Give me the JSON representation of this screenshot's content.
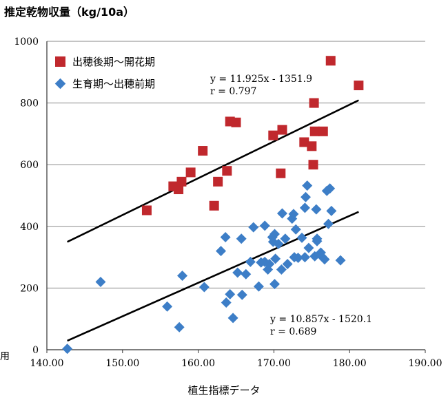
{
  "chart_data": {
    "type": "scatter",
    "ylabel": "推定乾物収量（kg/10a）",
    "xlabel": "植生指標データ",
    "stray_text": "用",
    "xlim": [
      140,
      190
    ],
    "ylim": [
      0,
      1000
    ],
    "x_ticks": [
      "140.00",
      "150.00",
      "160.00",
      "170.00",
      "180.00",
      "190.00"
    ],
    "y_ticks": [
      "0",
      "200",
      "400",
      "600",
      "800",
      "1000"
    ],
    "grid": "horizontal",
    "legend_position": "top-left",
    "series": [
      {
        "name": "出穂後期～開花期",
        "marker": "square",
        "color": "#c0282d",
        "points": [
          [
            153.2,
            452
          ],
          [
            156.7,
            530
          ],
          [
            157.4,
            520
          ],
          [
            157.8,
            545
          ],
          [
            159.0,
            575
          ],
          [
            160.6,
            645
          ],
          [
            162.1,
            467
          ],
          [
            162.6,
            545
          ],
          [
            163.8,
            580
          ],
          [
            164.2,
            740
          ],
          [
            165.0,
            737
          ],
          [
            169.9,
            695
          ],
          [
            170.9,
            572
          ],
          [
            171.1,
            713
          ],
          [
            174.0,
            673
          ],
          [
            175.0,
            660
          ],
          [
            175.2,
            600
          ],
          [
            175.3,
            800
          ],
          [
            175.4,
            708
          ],
          [
            176.5,
            708
          ],
          [
            177.5,
            937
          ],
          [
            181.2,
            857
          ]
        ]
      },
      {
        "name": "生育期～出穂前期",
        "marker": "diamond",
        "color": "#3d7ec7",
        "points": [
          [
            142.7,
            3
          ],
          [
            147.1,
            220
          ],
          [
            155.9,
            140
          ],
          [
            157.5,
            73
          ],
          [
            157.9,
            240
          ],
          [
            160.8,
            203
          ],
          [
            163.0,
            320
          ],
          [
            163.6,
            365
          ],
          [
            163.7,
            153
          ],
          [
            164.2,
            180
          ],
          [
            164.6,
            103
          ],
          [
            165.2,
            250
          ],
          [
            165.7,
            360
          ],
          [
            165.8,
            178
          ],
          [
            166.3,
            245
          ],
          [
            166.9,
            285
          ],
          [
            167.3,
            397
          ],
          [
            168.0,
            205
          ],
          [
            168.3,
            283
          ],
          [
            168.8,
            402
          ],
          [
            168.8,
            285
          ],
          [
            169.2,
            260
          ],
          [
            169.4,
            278
          ],
          [
            169.8,
            365
          ],
          [
            169.9,
            350
          ],
          [
            170.1,
            375
          ],
          [
            170.1,
            213
          ],
          [
            170.2,
            295
          ],
          [
            170.6,
            343
          ],
          [
            171.0,
            260
          ],
          [
            171.1,
            442
          ],
          [
            171.5,
            360
          ],
          [
            171.8,
            278
          ],
          [
            172.4,
            425
          ],
          [
            172.6,
            440
          ],
          [
            172.7,
            300
          ],
          [
            172.9,
            390
          ],
          [
            173.2,
            298
          ],
          [
            173.7,
            363
          ],
          [
            174.1,
            460
          ],
          [
            174.1,
            300
          ],
          [
            174.2,
            495
          ],
          [
            174.4,
            532
          ],
          [
            174.6,
            330
          ],
          [
            175.4,
            303
          ],
          [
            175.6,
            455
          ],
          [
            175.7,
            360
          ],
          [
            175.7,
            352
          ],
          [
            176.2,
            315
          ],
          [
            176.3,
            303
          ],
          [
            176.7,
            293
          ],
          [
            177.0,
            515
          ],
          [
            177.2,
            408
          ],
          [
            177.4,
            523
          ],
          [
            177.6,
            450
          ],
          [
            178.8,
            290
          ]
        ]
      }
    ],
    "trendlines": [
      {
        "series": "出穂後期～開花期",
        "equation": "y = 11.925x - 1351.9",
        "r": "r = 0.797",
        "x_range": [
          142.7,
          181.2
        ]
      },
      {
        "series": "生育期～出穂前期",
        "equation": "y = 10.857x - 1520.1",
        "r": "r = 0.689",
        "x_range": [
          142.7,
          181.2
        ]
      }
    ]
  }
}
